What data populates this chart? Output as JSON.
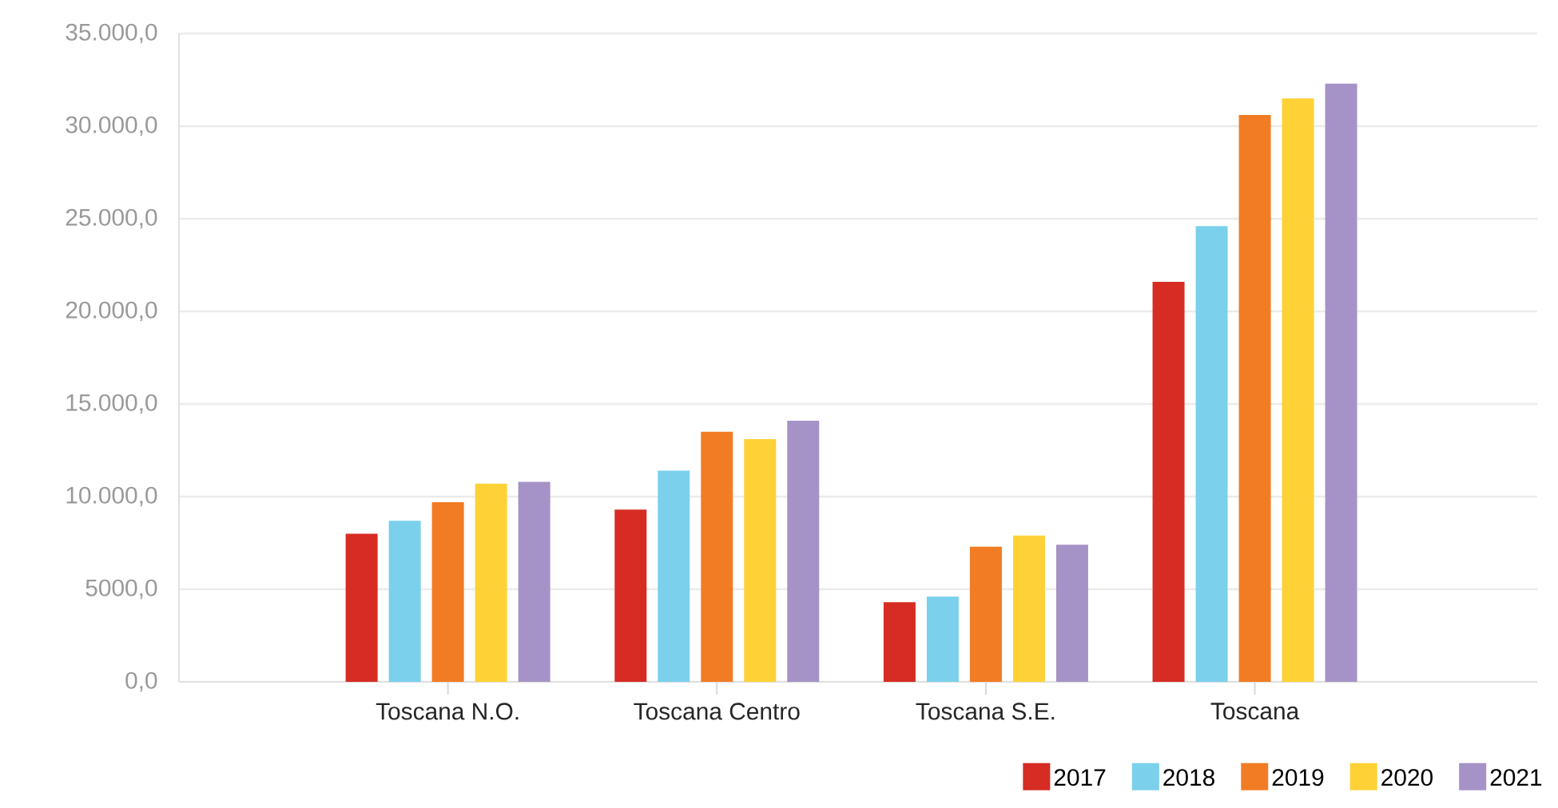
{
  "chart_data": {
    "type": "bar",
    "categories": [
      "Toscana N.O.",
      "Toscana Centro",
      "Toscana S.E.",
      "Toscana"
    ],
    "series": [
      {
        "name": "2017",
        "color": "#d62c24",
        "values": [
          8000,
          9300,
          4300,
          21600
        ]
      },
      {
        "name": "2018",
        "color": "#7bd0ec",
        "values": [
          8700,
          11400,
          4600,
          24600
        ]
      },
      {
        "name": "2019",
        "color": "#f27c24",
        "values": [
          9700,
          13500,
          7300,
          30600
        ]
      },
      {
        "name": "2020",
        "color": "#fed236",
        "values": [
          10700,
          13100,
          7900,
          31500
        ]
      },
      {
        "name": "2021",
        "color": "#a592c6",
        "values": [
          10800,
          14100,
          7400,
          32300
        ]
      }
    ],
    "ylim": [
      0,
      35000
    ],
    "yticks": [
      {
        "value": 0,
        "label": "0,0"
      },
      {
        "value": 5000,
        "label": "5000,0"
      },
      {
        "value": 10000,
        "label": "10.000,0"
      },
      {
        "value": 15000,
        "label": "15.000,0"
      },
      {
        "value": 20000,
        "label": "20.000,0"
      },
      {
        "value": 25000,
        "label": "25.000,0"
      },
      {
        "value": 30000,
        "label": "30.000,0"
      },
      {
        "value": 35000,
        "label": "35.000,0"
      }
    ],
    "grid": "y",
    "legend": "bottom right"
  }
}
